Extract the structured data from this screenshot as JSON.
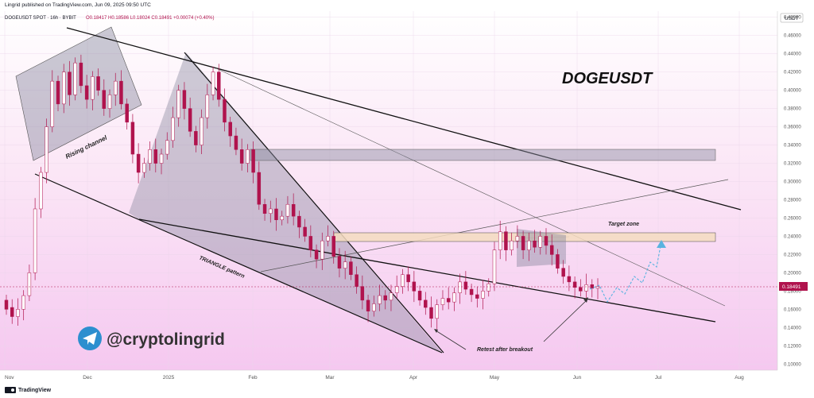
{
  "header": {
    "published_by": "Lingrid published on TradingView.com, Jun 09, 2025 09:50 UTC",
    "symbol_line": "DOGEUSDT SPOT · 16h · BYBIT",
    "ohlc": "O0.18417 H0.18586 L0.18024 C0.18491 +0.00074 (+0.40%)"
  },
  "currency_badge": "USDT",
  "footer": {
    "brand": "TradingView"
  },
  "annotations": {
    "title": "DOGEUSDT",
    "rising_channel": "Rising channel",
    "triangle": "TRIANGLE pattern",
    "target_zone": "Target zone",
    "retest": "Retest after breakout",
    "handle": "@cryptolingrid"
  },
  "last_price_label": "0.18491",
  "colors": {
    "bull": "#ffffff",
    "bear": "#b0134d",
    "accent_blue": "#5ab3e0",
    "telegram": "#2d8fcf",
    "zone_fill": "#f5dcc0"
  },
  "chart_data": {
    "type": "candlestick",
    "title": "",
    "xlabel": "",
    "ylabel": "",
    "x_ticks": [
      "Nov",
      "Dec",
      "2025",
      "Feb",
      "Mar",
      "Apr",
      "May",
      "Jun",
      "Jul",
      "Aug"
    ],
    "y_ticks": [
      "0.48000",
      "0.46000",
      "0.44000",
      "0.42000",
      "0.40000",
      "0.38000",
      "0.36000",
      "0.34000",
      "0.32000",
      "0.30000",
      "0.28000",
      "0.26000",
      "0.24000",
      "0.22000",
      "0.20000",
      "0.18000",
      "0.16000",
      "0.14000",
      "0.12000",
      "0.10000"
    ],
    "ylim": [
      0.095,
      0.485
    ],
    "grid": true,
    "series": [
      {
        "values": [
          [
            0.17,
            0.16
          ],
          [
            0.162,
            0.152
          ],
          [
            0.152,
            0.16
          ],
          [
            0.16,
            0.175
          ],
          [
            0.175,
            0.2
          ],
          [
            0.2,
            0.27
          ],
          [
            0.27,
            0.31
          ],
          [
            0.31,
            0.36
          ],
          [
            0.36,
            0.41
          ],
          [
            0.41,
            0.385
          ],
          [
            0.385,
            0.42
          ],
          [
            0.42,
            0.395
          ],
          [
            0.395,
            0.43
          ],
          [
            0.43,
            0.405
          ],
          [
            0.405,
            0.39
          ],
          [
            0.39,
            0.415
          ],
          [
            0.415,
            0.4
          ],
          [
            0.4,
            0.38
          ],
          [
            0.38,
            0.395
          ],
          [
            0.395,
            0.41
          ],
          [
            0.41,
            0.385
          ],
          [
            0.385,
            0.365
          ],
          [
            0.365,
            0.33
          ],
          [
            0.33,
            0.31
          ],
          [
            0.31,
            0.32
          ],
          [
            0.32,
            0.335
          ],
          [
            0.335,
            0.32
          ],
          [
            0.32,
            0.33
          ],
          [
            0.33,
            0.345
          ],
          [
            0.345,
            0.37
          ],
          [
            0.37,
            0.4
          ],
          [
            0.4,
            0.38
          ],
          [
            0.38,
            0.355
          ],
          [
            0.355,
            0.34
          ],
          [
            0.34,
            0.37
          ],
          [
            0.37,
            0.395
          ],
          [
            0.395,
            0.42
          ],
          [
            0.42,
            0.39
          ],
          [
            0.39,
            0.365
          ],
          [
            0.365,
            0.35
          ],
          [
            0.35,
            0.335
          ],
          [
            0.335,
            0.32
          ],
          [
            0.32,
            0.335
          ],
          [
            0.335,
            0.31
          ],
          [
            0.31,
            0.275
          ],
          [
            0.275,
            0.265
          ],
          [
            0.265,
            0.27
          ],
          [
            0.27,
            0.258
          ],
          [
            0.258,
            0.262
          ],
          [
            0.262,
            0.275
          ],
          [
            0.275,
            0.262
          ],
          [
            0.262,
            0.25
          ],
          [
            0.25,
            0.24
          ],
          [
            0.24,
            0.225
          ],
          [
            0.225,
            0.215
          ],
          [
            0.215,
            0.235
          ],
          [
            0.235,
            0.24
          ],
          [
            0.24,
            0.218
          ],
          [
            0.218,
            0.205
          ],
          [
            0.205,
            0.212
          ],
          [
            0.212,
            0.198
          ],
          [
            0.198,
            0.185
          ],
          [
            0.185,
            0.17
          ],
          [
            0.17,
            0.158
          ],
          [
            0.158,
            0.166
          ],
          [
            0.166,
            0.175
          ],
          [
            0.175,
            0.17
          ],
          [
            0.17,
            0.178
          ],
          [
            0.178,
            0.185
          ],
          [
            0.185,
            0.198
          ],
          [
            0.198,
            0.19
          ],
          [
            0.19,
            0.18
          ],
          [
            0.18,
            0.17
          ],
          [
            0.17,
            0.162
          ],
          [
            0.162,
            0.15
          ],
          [
            0.15,
            0.165
          ],
          [
            0.165,
            0.172
          ],
          [
            0.172,
            0.168
          ],
          [
            0.168,
            0.178
          ],
          [
            0.178,
            0.19
          ],
          [
            0.19,
            0.182
          ],
          [
            0.182,
            0.176
          ],
          [
            0.176,
            0.172
          ],
          [
            0.172,
            0.18
          ],
          [
            0.18,
            0.188
          ],
          [
            0.188,
            0.225
          ],
          [
            0.225,
            0.245
          ],
          [
            0.245,
            0.225
          ],
          [
            0.225,
            0.235
          ],
          [
            0.235,
            0.24
          ],
          [
            0.24,
            0.225
          ],
          [
            0.225,
            0.235
          ],
          [
            0.235,
            0.228
          ],
          [
            0.228,
            0.24
          ],
          [
            0.24,
            0.23
          ],
          [
            0.23,
            0.22
          ],
          [
            0.22,
            0.205
          ],
          [
            0.205,
            0.196
          ],
          [
            0.196,
            0.19
          ],
          [
            0.19,
            0.184
          ],
          [
            0.184,
            0.18
          ],
          [
            0.18,
            0.187
          ],
          [
            0.187,
            0.183
          ],
          [
            0.183,
            0.185
          ]
        ]
      }
    ]
  }
}
